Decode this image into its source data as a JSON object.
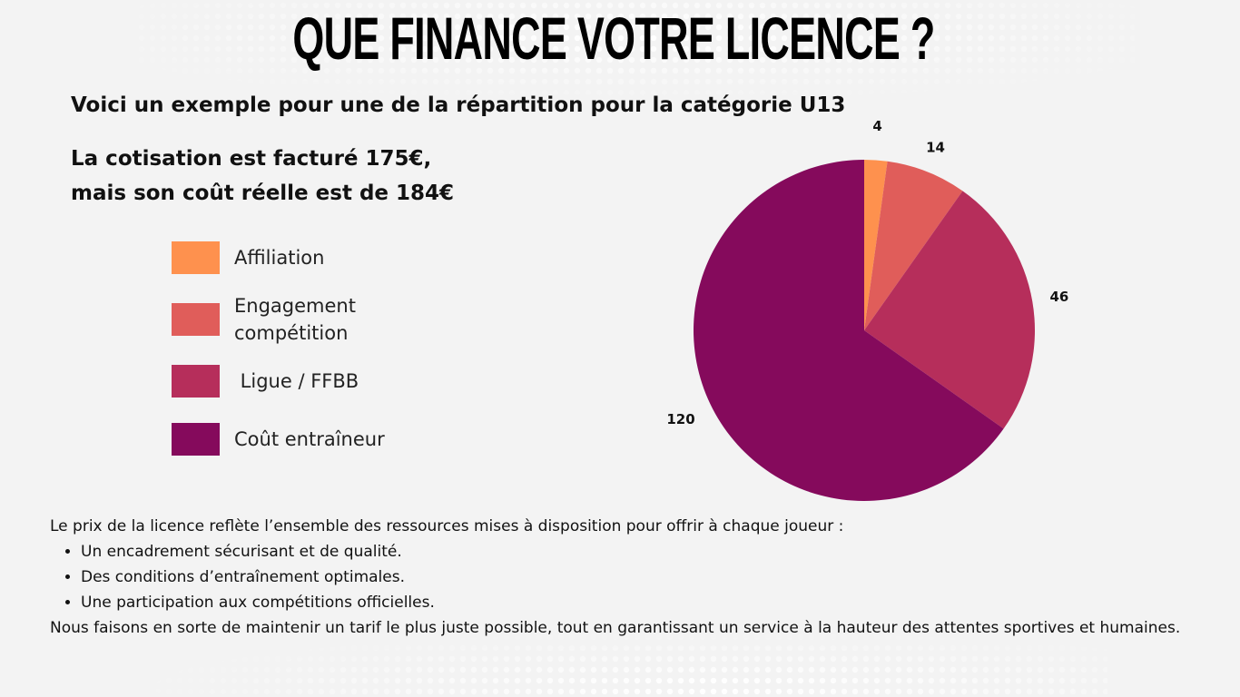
{
  "title": "QUE FINANCE VOTRE LICENCE ?",
  "subtitle": "Voici un exemple pour une de la répartition pour la catégorie U13",
  "price_note": {
    "line1": "La cotisation est  facturé 175€,",
    "line2": "mais son coût réelle est de 184€"
  },
  "chart_data": {
    "type": "pie",
    "categories": [
      "Affiliation",
      "Engagement compétition",
      " Ligue / FFBB",
      "Coût entraîneur"
    ],
    "values": [
      4,
      14,
      46,
      120
    ],
    "data_labels": [
      "4",
      "14",
      "46",
      "120"
    ],
    "colors": [
      "#fe914e",
      "#e05d5a",
      "#b62e5b",
      "#850a5c"
    ],
    "legend_position": "left",
    "start_angle": "12 o'clock",
    "direction": "clockwise"
  },
  "legend": [
    {
      "label": "Affiliation",
      "color": "#fe914e"
    },
    {
      "label": "Engagement compétition",
      "color": "#e05d5a"
    },
    {
      "label": " Ligue / FFBB",
      "color": "#b62e5b"
    },
    {
      "label": "Coût entraîneur",
      "color": "#850a5c"
    }
  ],
  "body": {
    "intro": "Le prix de la licence reflète l’ensemble des ressources mises à disposition pour offrir à chaque joueur :",
    "bullets": [
      "Un encadrement sécurisant et de qualité.",
      "Des conditions d’entraînement optimales.",
      "Une participation aux compétitions officielles."
    ],
    "closing": "Nous faisons en sorte de maintenir un tarif le plus juste possible, tout en garantissant un service à la hauteur des attentes sportives et humaines."
  }
}
